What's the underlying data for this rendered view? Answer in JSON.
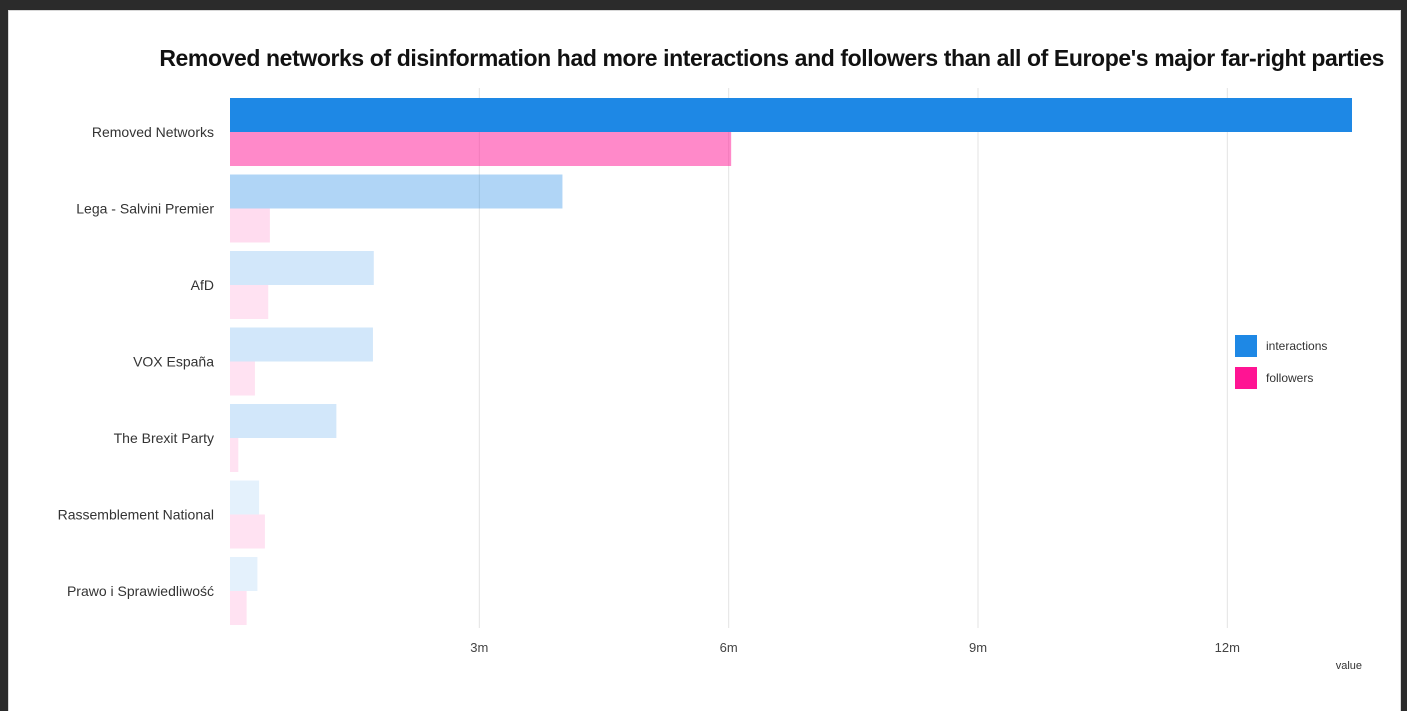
{
  "chart_data": {
    "type": "bar",
    "orientation": "horizontal",
    "title": "Removed networks of disinformation had more interactions and followers than all of Europe's major far-right parties",
    "xlabel": "value",
    "ylabel": "",
    "categories": [
      "Removed Networks",
      "Lega - Salvini Premier",
      "AfD",
      "VOX España",
      "The Brexit Party",
      "Rassemblement National",
      "Prawo i Sprawiedliwość"
    ],
    "series": [
      {
        "name": "interactions",
        "color": "#1e88e5",
        "values": [
          13500000,
          4000000,
          1730000,
          1720000,
          1280000,
          350000,
          330000
        ]
      },
      {
        "name": "followers",
        "color": "#ff1493",
        "values": [
          6030000,
          480000,
          460000,
          300000,
          100000,
          420000,
          200000
        ]
      }
    ],
    "category_opacity": [
      1.0,
      0.35,
      0.2,
      0.2,
      0.2,
      0.12,
      0.12
    ],
    "follower_opacity": [
      0.5,
      0.15,
      0.12,
      0.12,
      0.12,
      0.12,
      0.12
    ],
    "xlim": [
      0,
      13500000
    ],
    "xticks": [
      {
        "value": 3000000,
        "label": "3m"
      },
      {
        "value": 6000000,
        "label": "6m"
      },
      {
        "value": 9000000,
        "label": "9m"
      },
      {
        "value": 12000000,
        "label": "12m"
      }
    ],
    "grid": true,
    "legend_position": "right"
  }
}
